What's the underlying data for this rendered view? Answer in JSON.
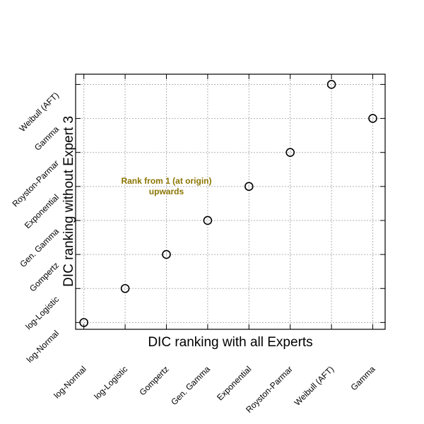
{
  "chart_data": {
    "type": "scatter",
    "xlabel": "DIC ranking with all Experts",
    "ylabel": "DIC ranking without Expert 3",
    "x_categories": [
      "log-Normal",
      "log-Logistic",
      "Gompertz",
      "Gen. Gamma",
      "Exponential",
      "Royston-Parmar",
      "Weibull (AFT)",
      "Gamma"
    ],
    "y_categories": [
      "log-Normal",
      "log-Logistic",
      "Gompertz",
      "Gen. Gamma",
      "Exponential",
      "Royston-Parmar",
      "Gamma",
      "Weibull (AFT)"
    ],
    "xlim": [
      0.8,
      8.3
    ],
    "ylim": [
      0.8,
      8.3
    ],
    "grid": true,
    "points": [
      {
        "x": 1,
        "y": 1
      },
      {
        "x": 2,
        "y": 2
      },
      {
        "x": 3,
        "y": 3
      },
      {
        "x": 4,
        "y": 4
      },
      {
        "x": 5,
        "y": 5
      },
      {
        "x": 6,
        "y": 6
      },
      {
        "x": 7,
        "y": 8
      },
      {
        "x": 8,
        "y": 7
      }
    ],
    "annotation": {
      "lines": [
        "Rank from 1 (at origin)",
        "upwards"
      ],
      "x": 3.0,
      "y": 5.0,
      "color": "#8b7500"
    }
  }
}
